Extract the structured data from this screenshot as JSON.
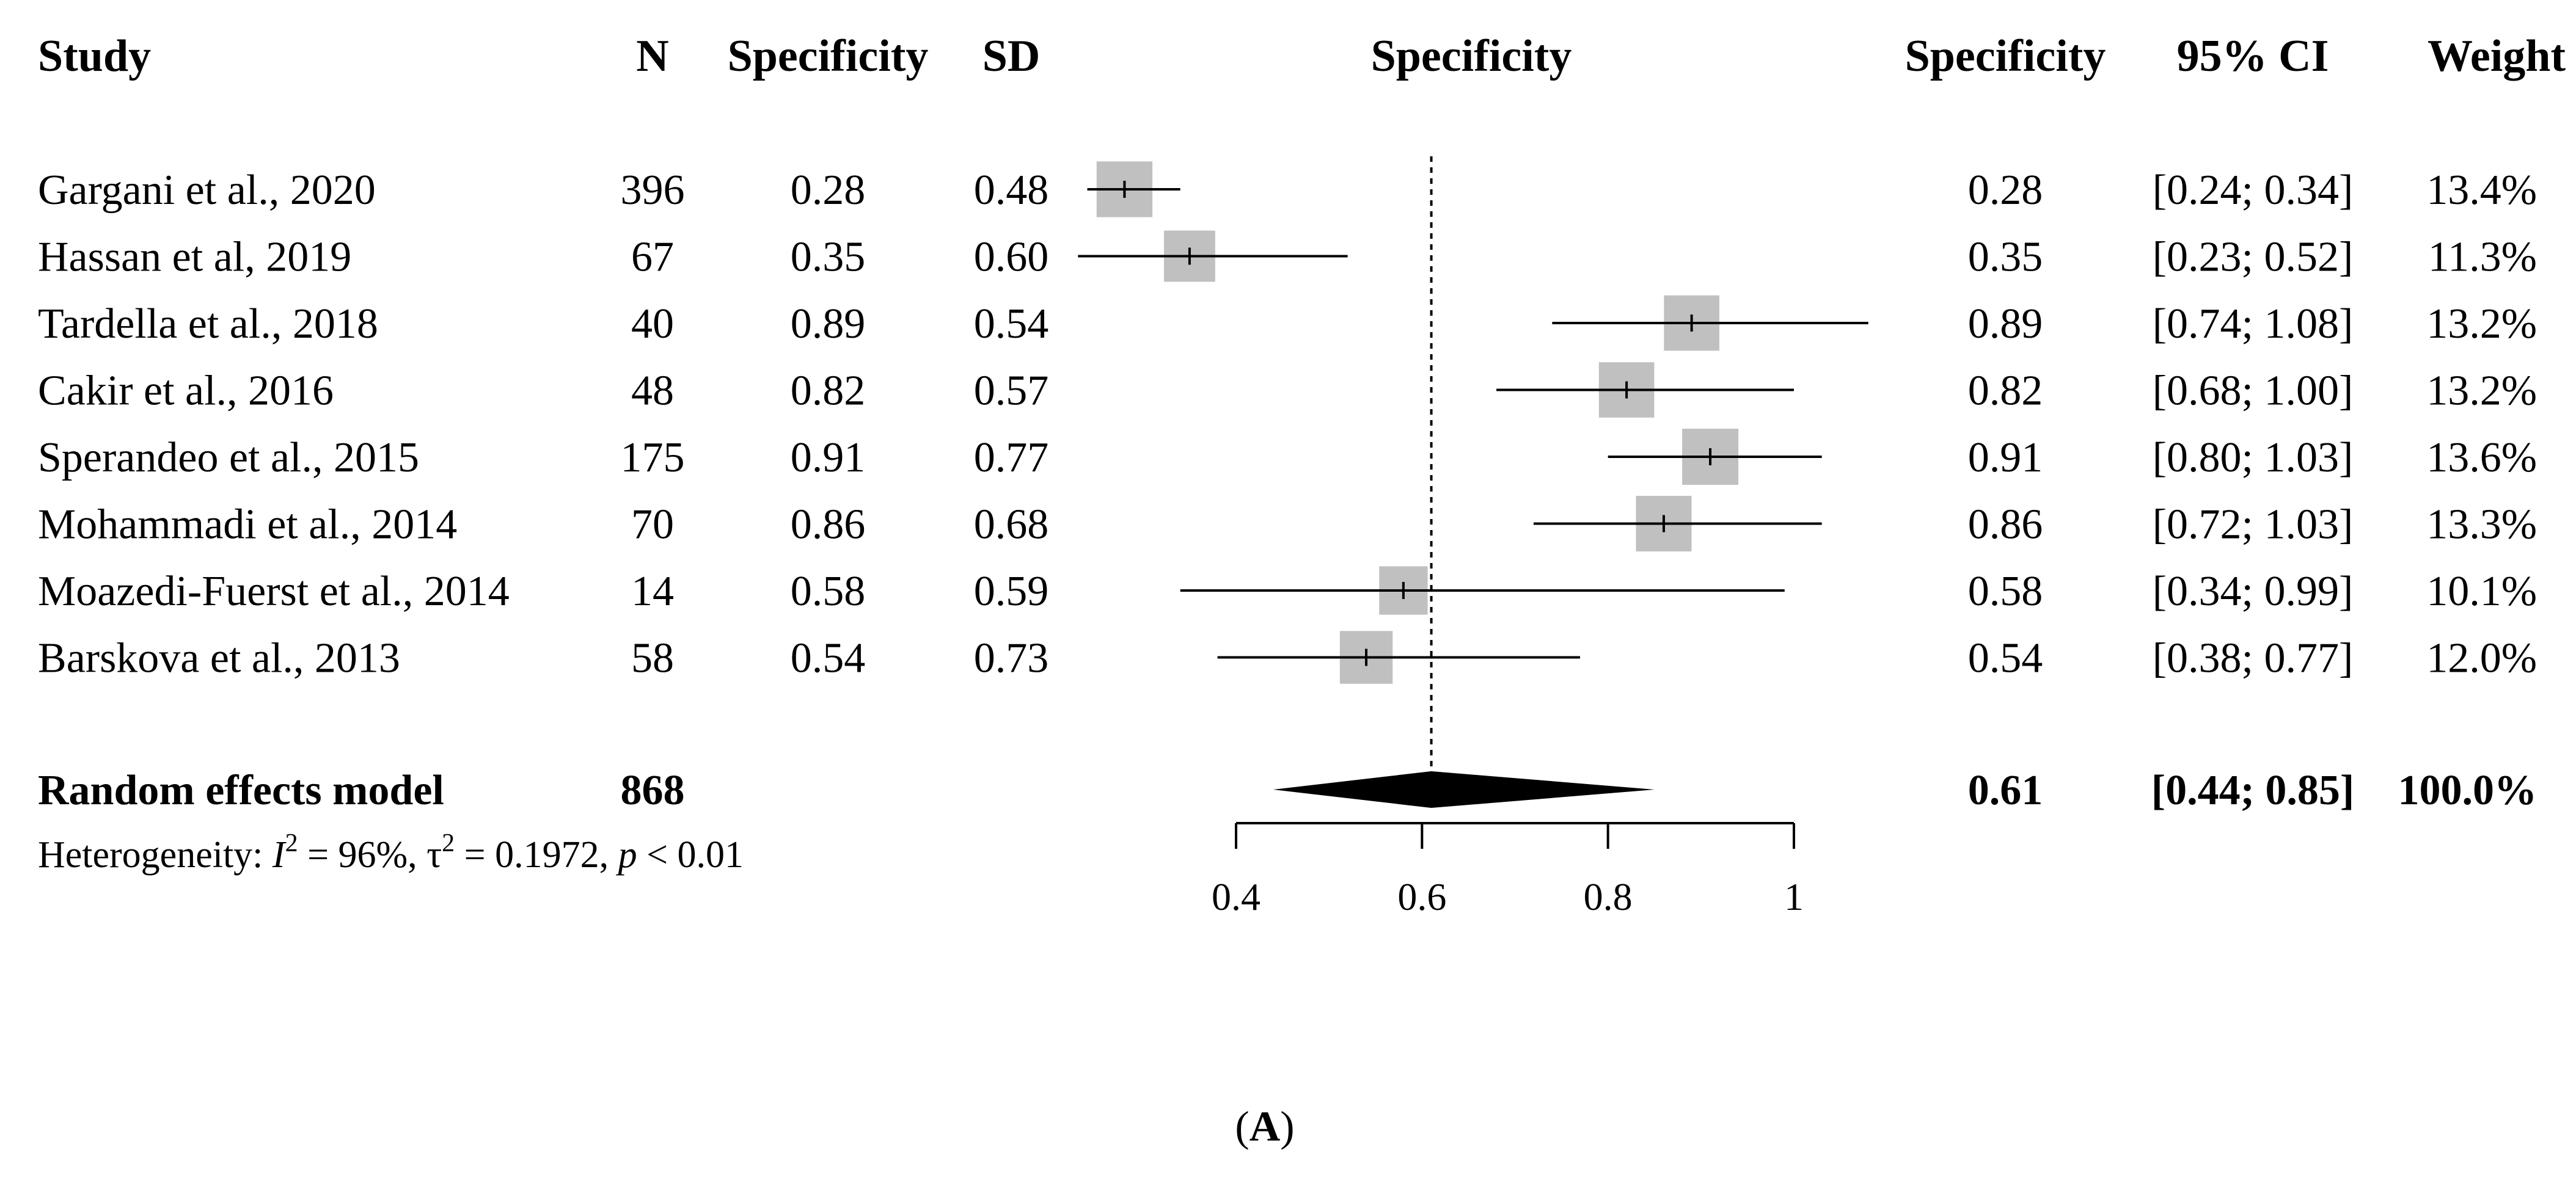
{
  "headers": {
    "study": "Study",
    "n": "N",
    "specificity": "Specificity",
    "sd": "SD",
    "plot": "Specificity",
    "est": "Specificity",
    "ci": "95% CI",
    "weight": "Weight"
  },
  "heterogeneity": {
    "prefix": "Heterogeneity: ",
    "i2_symbol": "I",
    "i2_value": " = 96%, ",
    "tau2_symbol": "τ",
    "tau2_value": " = 0.1972, ",
    "p_symbol": "p",
    "p_value": " < 0.01",
    "superscript": "2"
  },
  "panel_label": {
    "open": "(",
    "letter": "A",
    "close": ")"
  },
  "chart_data": {
    "type": "forest",
    "title": "Specificity",
    "x_axis": {
      "ticks": [
        0.4,
        0.6,
        0.8,
        1
      ],
      "tick_labels": [
        "0.4",
        "0.6",
        "0.8",
        "1"
      ],
      "range": [
        0.4,
        1.0
      ],
      "reference_line": 0.61
    },
    "studies": [
      {
        "study": "Gargani et al., 2020",
        "n": "396",
        "specificity": "0.28",
        "sd": "0.48",
        "estimate": 0.28,
        "lower": 0.24,
        "upper": 0.34,
        "est_text": "0.28",
        "ci_text": "[0.24; 0.34]",
        "weight": 13.4,
        "weight_text": "13.4%"
      },
      {
        "study": "Hassan et al, 2019",
        "n": "67",
        "specificity": "0.35",
        "sd": "0.60",
        "estimate": 0.35,
        "lower": 0.23,
        "upper": 0.52,
        "est_text": "0.35",
        "ci_text": "[0.23; 0.52]",
        "weight": 11.3,
        "weight_text": "11.3%"
      },
      {
        "study": "Tardella et al., 2018",
        "n": "40",
        "specificity": "0.89",
        "sd": "0.54",
        "estimate": 0.89,
        "lower": 0.74,
        "upper": 1.08,
        "est_text": "0.89",
        "ci_text": "[0.74; 1.08]",
        "weight": 13.2,
        "weight_text": "13.2%"
      },
      {
        "study": "Cakir et al., 2016",
        "n": "48",
        "specificity": "0.82",
        "sd": "0.57",
        "estimate": 0.82,
        "lower": 0.68,
        "upper": 1.0,
        "est_text": "0.82",
        "ci_text": "[0.68; 1.00]",
        "weight": 13.2,
        "weight_text": "13.2%"
      },
      {
        "study": "Sperandeo et al., 2015",
        "n": "175",
        "specificity": "0.91",
        "sd": "0.77",
        "estimate": 0.91,
        "lower": 0.8,
        "upper": 1.03,
        "est_text": "0.91",
        "ci_text": "[0.80; 1.03]",
        "weight": 13.6,
        "weight_text": "13.6%"
      },
      {
        "study": "Mohammadi et al., 2014",
        "n": "70",
        "specificity": "0.86",
        "sd": "0.68",
        "estimate": 0.86,
        "lower": 0.72,
        "upper": 1.03,
        "est_text": "0.86",
        "ci_text": "[0.72; 1.03]",
        "weight": 13.3,
        "weight_text": "13.3%"
      },
      {
        "study": "Moazedi-Fuerst et al., 2014",
        "n": "14",
        "specificity": "0.58",
        "sd": "0.59",
        "estimate": 0.58,
        "lower": 0.34,
        "upper": 0.99,
        "est_text": "0.58",
        "ci_text": "[0.34; 0.99]",
        "weight": 10.1,
        "weight_text": "10.1%"
      },
      {
        "study": "Barskova et al., 2013",
        "n": "58",
        "specificity": "0.54",
        "sd": "0.73",
        "estimate": 0.54,
        "lower": 0.38,
        "upper": 0.77,
        "est_text": "0.54",
        "ci_text": "[0.38; 0.77]",
        "weight": 12.0,
        "weight_text": "12.0%"
      }
    ],
    "summary": {
      "label": "Random effects model",
      "n": "868",
      "estimate": 0.61,
      "lower": 0.44,
      "upper": 0.85,
      "est_text": "0.61",
      "ci_text": "[0.44; 0.85]",
      "weight_text": "100.0%"
    },
    "colors": {
      "box": "#c0c0c0",
      "line": "#000000",
      "diamond": "#000000"
    }
  }
}
